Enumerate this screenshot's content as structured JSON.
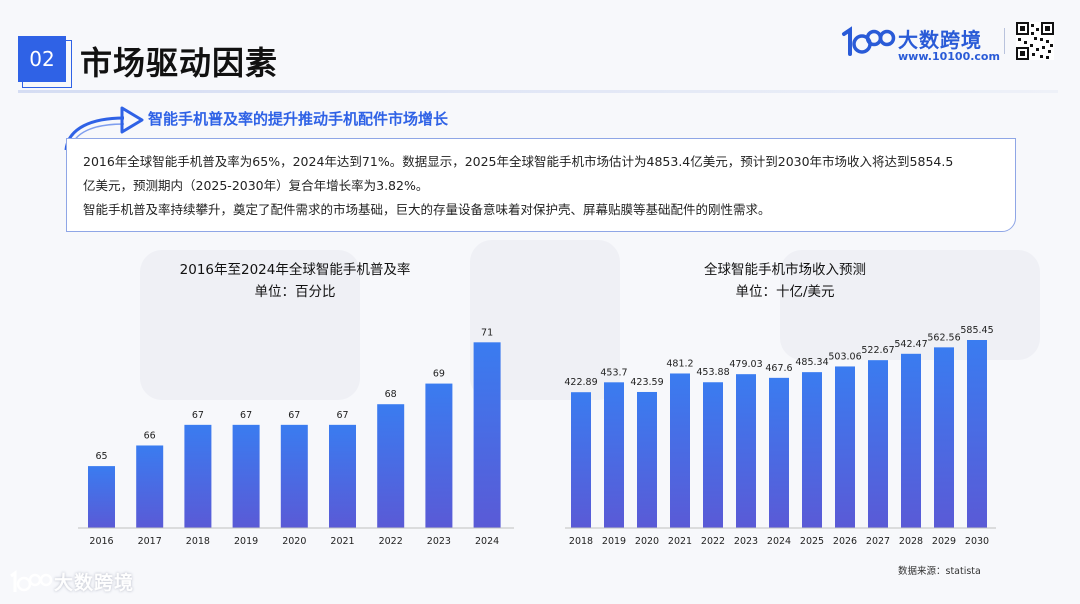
{
  "header": {
    "page_number": "02",
    "title": "市场驱动因素"
  },
  "logo": {
    "name": "大数跨境",
    "url": "www.10100.com"
  },
  "subtitle": "智能手机普及率的提升推动手机配件市场增长",
  "summary": {
    "line1": "2016年全球智能手机普及率为65%，2024年达到71%。数据显示，2025年全球智能手机市场估计为4853.4亿美元，预计到2030年市场收入将达到5854.5",
    "line2": "亿美元，预测期内（2025-2030年）复合年增长率为3.82%。",
    "line3": "智能手机普及率持续攀升，奠定了配件需求的市场基础，巨大的存量设备意味着对保护壳、屏幕贴膜等基础配件的刚性需求。"
  },
  "chart_data": [
    {
      "type": "bar",
      "title": "2016年至2024年全球智能手机普及率",
      "unit": "单位：百分比",
      "categories": [
        "2016",
        "2017",
        "2018",
        "2019",
        "2020",
        "2021",
        "2022",
        "2023",
        "2024"
      ],
      "values": [
        65,
        66,
        67,
        67,
        67,
        67,
        68,
        69,
        71
      ],
      "value_labels": [
        "65",
        "66",
        "67",
        "67",
        "67",
        "67",
        "68",
        "69",
        "71"
      ],
      "ylim": [
        62,
        71.5
      ],
      "grid": false,
      "bar_color_top": "#3a7cf0",
      "bar_color_bottom": "#5a5ad6"
    },
    {
      "type": "bar",
      "title": "全球智能手机市场收入预测",
      "unit": "单位：十亿/美元",
      "categories": [
        "2018",
        "2019",
        "2020",
        "2021",
        "2022",
        "2023",
        "2024",
        "2025",
        "2026",
        "2027",
        "2028",
        "2029",
        "2030"
      ],
      "values": [
        422.89,
        453.7,
        423.59,
        481.2,
        453.88,
        479.03,
        467.6,
        485.34,
        503.06,
        522.67,
        542.47,
        562.56,
        585.45
      ],
      "value_labels": [
        "422.89",
        "453.7",
        "423.59",
        "481.2",
        "453.88",
        "479.03",
        "467.6",
        "485.34",
        "503.06",
        "522.67",
        "542.47",
        "562.56",
        "585.45"
      ],
      "ylim": [
        0,
        585.45
      ],
      "grid": false,
      "bar_color_top": "#3a7cf0",
      "bar_color_bottom": "#5a5ad6"
    }
  ],
  "source": "数据来源：statista",
  "watermark": "大数跨境"
}
